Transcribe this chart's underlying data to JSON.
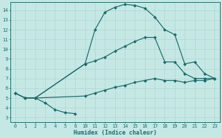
{
  "xlabel": "Humidex (Indice chaleur)",
  "bg_color": "#c5e8e5",
  "grid_color": "#afd4d0",
  "line_color": "#1a6b6b",
  "ylim": [
    2.5,
    14.8
  ],
  "yticks": [
    3,
    4,
    5,
    6,
    7,
    8,
    9,
    10,
    11,
    12,
    13,
    14
  ],
  "xtick_labels": [
    "0",
    "1",
    "2",
    "3",
    "4",
    "5",
    "6",
    "10",
    "11",
    "12",
    "13",
    "14",
    "15",
    "16",
    "17",
    "18",
    "19",
    "20",
    "21",
    "22",
    "23"
  ],
  "curve1_x": [
    0,
    1,
    2,
    7,
    8,
    9,
    10,
    11,
    12,
    13,
    14,
    15,
    16,
    17,
    18,
    19,
    20
  ],
  "curve1_y": [
    5.5,
    5.0,
    5.0,
    8.5,
    12.0,
    13.8,
    14.3,
    14.6,
    14.5,
    14.2,
    13.3,
    12.0,
    11.5,
    8.5,
    8.7,
    7.5,
    7.0
  ],
  "curve2_x": [
    0,
    1,
    2,
    7,
    8,
    9,
    10,
    11,
    12,
    13,
    14,
    15,
    16,
    17,
    18,
    19,
    20
  ],
  "curve2_y": [
    5.5,
    5.0,
    5.0,
    8.5,
    8.8,
    9.2,
    9.8,
    10.3,
    10.8,
    11.2,
    11.2,
    8.7,
    8.7,
    7.5,
    7.0,
    7.0,
    7.0
  ],
  "curve3_x": [
    0,
    1,
    2,
    7,
    8,
    9,
    10,
    11,
    12,
    13,
    14,
    15,
    16,
    17,
    18,
    19,
    20
  ],
  "curve3_y": [
    5.5,
    5.0,
    5.0,
    5.2,
    5.5,
    5.8,
    6.1,
    6.3,
    6.6,
    6.8,
    7.0,
    6.8,
    6.8,
    6.6,
    6.8,
    6.8,
    7.0
  ],
  "curve4_x": [
    1,
    2,
    3,
    4,
    5,
    6
  ],
  "curve4_y": [
    5.0,
    5.0,
    4.5,
    3.8,
    3.5,
    3.4
  ]
}
